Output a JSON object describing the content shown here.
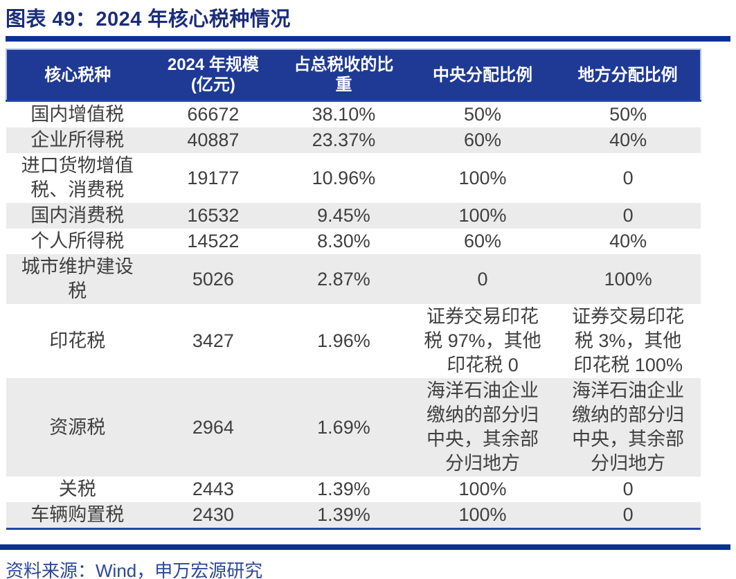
{
  "figure": {
    "label": "图表 49"
  },
  "chart_data": {
    "type": "table",
    "title": "图表 49：2024 年核心税种情况",
    "columns": [
      "核心税种",
      "2024 年规模(亿元)",
      "占总税收的比重",
      "中央分配比例",
      "地方分配比例"
    ],
    "rows": [
      [
        "国内增值税",
        "66672",
        "38.10%",
        "50%",
        "50%"
      ],
      [
        "企业所得税",
        "40887",
        "23.37%",
        "60%",
        "40%"
      ],
      [
        "进口货物增值税、消费税",
        "19177",
        "10.96%",
        "100%",
        "0"
      ],
      [
        "国内消费税",
        "16532",
        "9.45%",
        "100%",
        "0"
      ],
      [
        "个人所得税",
        "14522",
        "8.30%",
        "60%",
        "40%"
      ],
      [
        "城市维护建设税",
        "5026",
        "2.87%",
        "0",
        "100%"
      ],
      [
        "印花税",
        "3427",
        "1.96%",
        "证券交易印花税 97%，其他印花税 0",
        "证券交易印花税 3%，其他印花税 100%"
      ],
      [
        "资源税",
        "2964",
        "1.69%",
        "海洋石油企业缴纳的部分归中央，其余部分归地方",
        "海洋石油企业缴纳的部分归中央，其余部分归地方"
      ],
      [
        "关税",
        "2443",
        "1.39%",
        "100%",
        "0"
      ],
      [
        "车辆购置税",
        "2430",
        "1.39%",
        "100%",
        "0"
      ]
    ],
    "units": "亿元",
    "legend_position": "none",
    "grid": "off"
  },
  "footer": {
    "source": "资料来源：Wind，申万宏源研究"
  },
  "colors": {
    "title_color": "#1B2D7A",
    "rule_color": "#0A3193",
    "header_bg": "#1E3A94",
    "header_text": "#FFFFFF",
    "header_edge": "#AFC0E8",
    "table_line": "#2444AC",
    "row_alt": "#EBEBEB",
    "body_text": "#3F3F3F",
    "source_color": "#2B479C"
  }
}
